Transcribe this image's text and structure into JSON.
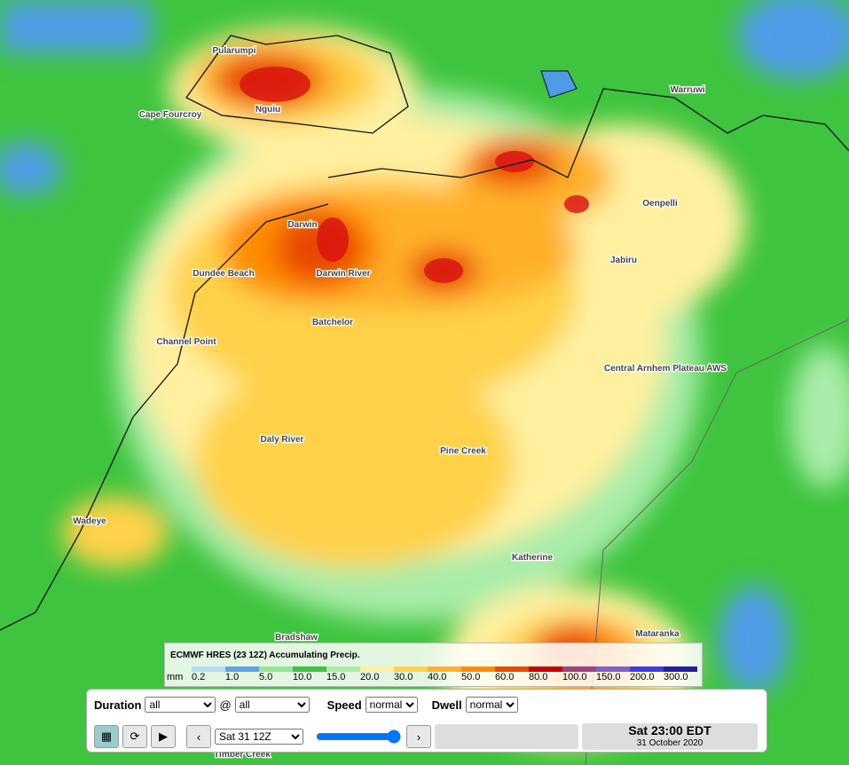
{
  "map": {
    "places": [
      "Pularumpi",
      "Cape Fourcroy",
      "Nguiu",
      "Warruwi",
      "Darwin",
      "Dundee Beach",
      "Darwin River",
      "Oenpelli",
      "Jabiru",
      "Batchelor",
      "Channel Point",
      "Central Arnhem Plateau AWS",
      "Daly River",
      "Pine Creek",
      "Wadeye",
      "Katherine",
      "Bradshaw",
      "Mataranka",
      "Timber Creek"
    ]
  },
  "legend": {
    "title": "ECMWF HRES (23 12Z) Accumulating Precip.",
    "unit": "mm",
    "labels": [
      "0.2",
      "1.0",
      "5.0",
      "10.0",
      "15.0",
      "20.0",
      "30.0",
      "40.0",
      "50.0",
      "60.0",
      "80.0",
      "100.0",
      "150.0",
      "200.0",
      "300.0"
    ],
    "colors": [
      "#b4dcf5",
      "#5aa5e6",
      "#96e496",
      "#3ec43e",
      "#a8eca8",
      "#fff0a0",
      "#ffd24a",
      "#ffb02a",
      "#ff8c00",
      "#e84a00",
      "#c80000",
      "#a04080",
      "#8060c8",
      "#3c3ce0",
      "#2020a0"
    ]
  },
  "controls": {
    "duration_label": "Duration",
    "duration": "all",
    "at": "@",
    "at_value": "all",
    "speed_label": "Speed",
    "speed": "normal",
    "dwell_label": "Dwell",
    "dwell": "normal",
    "frame": "Sat 31 12Z",
    "time": "Sat 23:00 EDT",
    "date": "31 October 2020"
  }
}
